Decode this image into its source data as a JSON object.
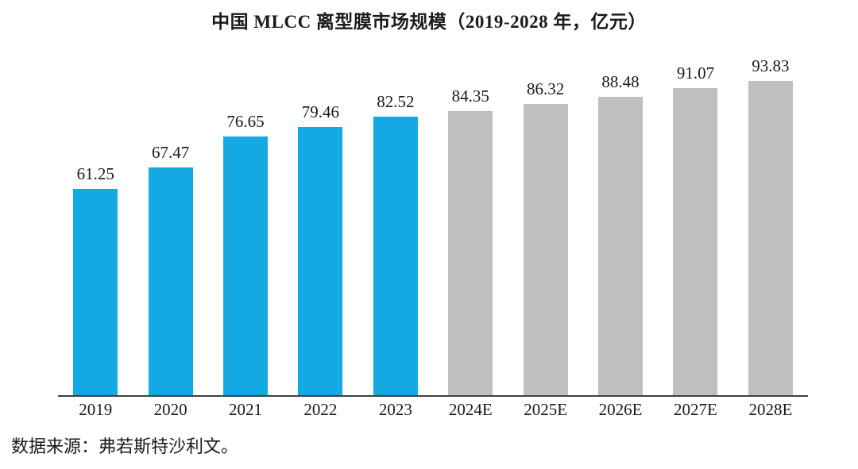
{
  "chart_data": {
    "type": "bar",
    "title": "中国 MLCC 离型膜市场规模（2019-2028 年，亿元）",
    "categories": [
      "2019",
      "2020",
      "2021",
      "2022",
      "2023",
      "2024E",
      "2025E",
      "2026E",
      "2027E",
      "2028E"
    ],
    "values": [
      61.25,
      67.47,
      76.65,
      79.46,
      82.52,
      84.35,
      86.32,
      88.48,
      91.07,
      93.83
    ],
    "value_label_decimals": 2,
    "xlabel": "",
    "ylabel": "",
    "ylim": [
      0,
      100
    ],
    "grid": false,
    "legend_position": "none",
    "y_axis_visible": false,
    "colors": {
      "actual": "#14a9e3",
      "forecast": "#bfbfbf"
    },
    "forecast_start_index": 5,
    "axis_line_color": "#404040"
  },
  "footer": {
    "source": "数据来源：弗若斯特沙利文。"
  }
}
